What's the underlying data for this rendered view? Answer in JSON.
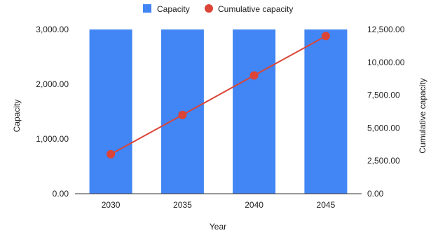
{
  "chart_data": {
    "type": "bar",
    "title": "",
    "categories": [
      "2030",
      "2035",
      "2040",
      "2045"
    ],
    "xlabel": "Year",
    "ylabel": "Capacity",
    "y2label": "Cumulative capacity",
    "ylim": [
      0,
      3000
    ],
    "y2lim": [
      0,
      12500
    ],
    "yticks": [
      "0.00",
      "1,000.00",
      "2,000.00",
      "3,000.00"
    ],
    "y2ticks": [
      "0.00",
      "2,500.00",
      "5,000.00",
      "7,500.00",
      "10,000.00",
      "12,500.00"
    ],
    "grid": false,
    "legend_position": "top-center",
    "series": [
      {
        "name": "Capacity",
        "type": "bar",
        "axis": "left",
        "color": "#4285f4",
        "values": [
          3000,
          3000,
          3000,
          3000
        ]
      },
      {
        "name": "Cumulative capacity",
        "type": "line",
        "axis": "right",
        "color": "#db4437",
        "values": [
          3000,
          6000,
          9000,
          12000
        ]
      }
    ]
  }
}
